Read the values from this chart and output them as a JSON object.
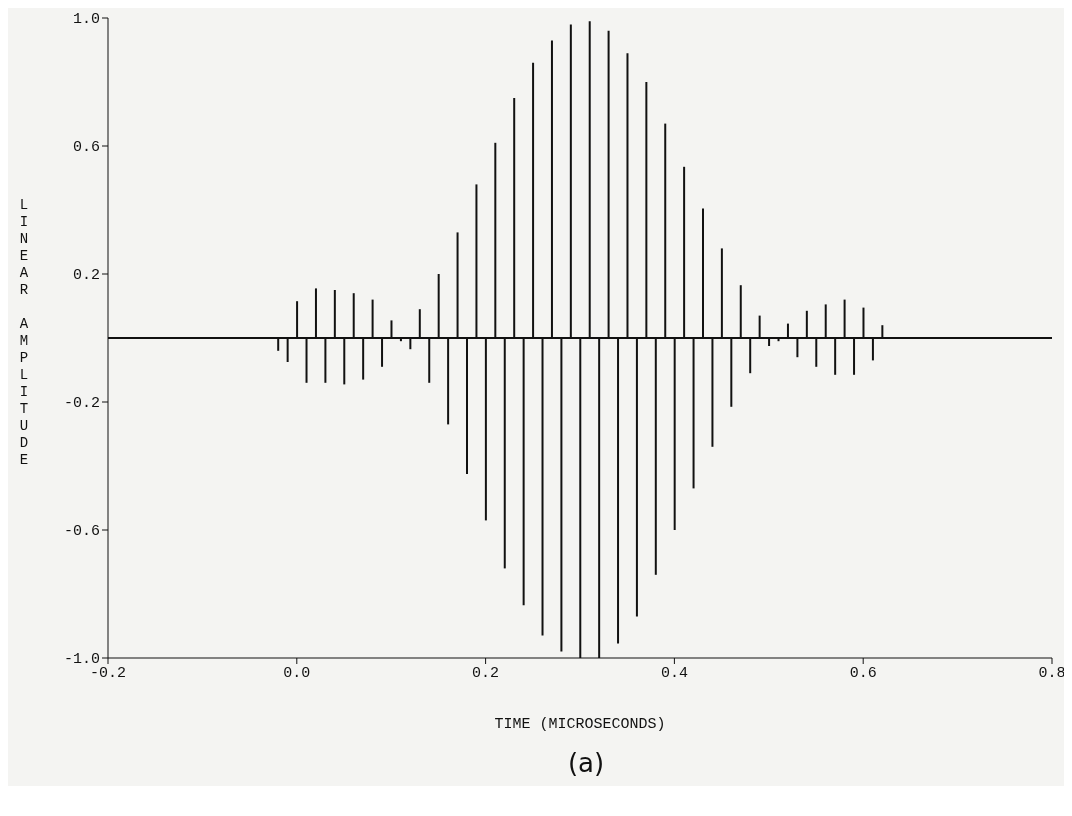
{
  "chart_data": {
    "type": "bar",
    "xlabel": "TIME (MICROSECONDS)",
    "ylabel": "LINEAR AMPLITUDE",
    "annotations": [
      "(a)"
    ],
    "x": [
      -0.02,
      -0.01,
      0.0,
      0.01,
      0.02,
      0.03,
      0.04,
      0.05,
      0.06,
      0.07,
      0.08,
      0.09,
      0.1,
      0.11,
      0.12,
      0.13,
      0.14,
      0.15,
      0.16,
      0.17,
      0.18,
      0.19,
      0.2,
      0.21,
      0.22,
      0.23,
      0.24,
      0.25,
      0.26,
      0.27,
      0.28,
      0.29,
      0.3,
      0.31,
      0.32,
      0.33,
      0.34,
      0.35,
      0.36,
      0.37,
      0.38,
      0.39,
      0.4,
      0.41,
      0.42,
      0.43,
      0.44,
      0.45,
      0.46,
      0.47,
      0.48,
      0.49,
      0.5,
      0.51,
      0.52,
      0.53,
      0.54,
      0.55,
      0.56,
      0.57,
      0.58,
      0.59,
      0.6,
      0.61,
      0.62
    ],
    "values": [
      -0.04,
      -0.075,
      0.115,
      -0.14,
      0.155,
      -0.14,
      0.15,
      -0.145,
      0.14,
      -0.13,
      0.12,
      -0.09,
      0.055,
      -0.01,
      -0.035,
      0.09,
      -0.14,
      0.2,
      -0.27,
      0.33,
      -0.425,
      0.48,
      -0.57,
      0.61,
      -0.72,
      0.75,
      -0.835,
      0.86,
      -0.93,
      0.93,
      -0.98,
      0.98,
      -1.0,
      0.99,
      -1.0,
      0.96,
      -0.955,
      0.89,
      -0.87,
      0.8,
      -0.74,
      0.67,
      -0.6,
      0.535,
      -0.47,
      0.405,
      -0.34,
      0.28,
      -0.215,
      0.165,
      -0.11,
      0.07,
      -0.025,
      -0.01,
      0.045,
      -0.06,
      0.085,
      -0.09,
      0.105,
      -0.115,
      0.12,
      -0.115,
      0.095,
      -0.07,
      0.04
    ],
    "color": "#111111",
    "xlim": [
      -0.2,
      0.8
    ],
    "xticks": [
      -0.2,
      {
        "value": 0,
        "label": "0.0"
      },
      0.2,
      0.4,
      0.6,
      0.8
    ],
    "ylim": [
      -1,
      1
    ],
    "yticks": [
      {
        "value": -1,
        "label": "-1.0"
      },
      -0.6,
      -0.2,
      0.2,
      0.6,
      {
        "value": 1,
        "label": "1.0"
      }
    ],
    "ref_lines": [
      {
        "axis": "y",
        "value": 0,
        "color": "#111111"
      }
    ]
  }
}
